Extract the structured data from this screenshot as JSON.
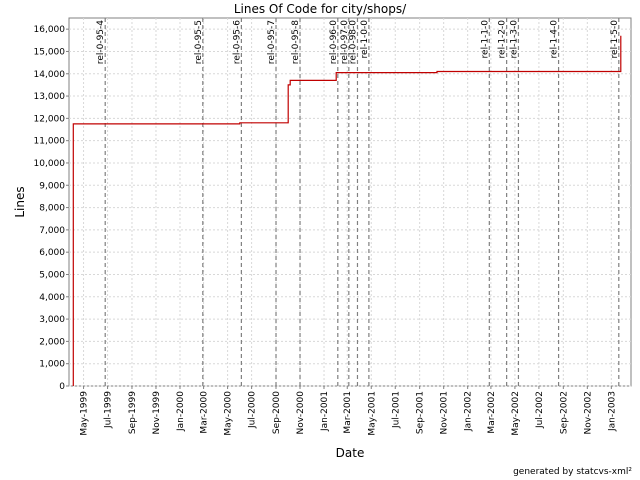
{
  "chart_data": {
    "type": "line",
    "title": "Lines Of Code for city/shops/",
    "xlabel": "Date",
    "ylabel": "Lines",
    "ylim": [
      0,
      16500
    ],
    "y_ticks": [
      0,
      1000,
      2000,
      3000,
      4000,
      5000,
      6000,
      7000,
      8000,
      9000,
      10000,
      11000,
      12000,
      13000,
      14000,
      15000,
      16000
    ],
    "x_ticks": [
      "May-1999",
      "Jul-1999",
      "Sep-1999",
      "Nov-1999",
      "Jan-2000",
      "Mar-2000",
      "May-2000",
      "Jul-2000",
      "Sep-2000",
      "Nov-2000",
      "Jan-2001",
      "Mar-2001",
      "May-2001",
      "Jul-2001",
      "Sep-2001",
      "Nov-2001",
      "Jan-2002",
      "Mar-2002",
      "May-2002",
      "Jul-2002",
      "Sep-2002",
      "Nov-2002",
      "Jan-2003"
    ],
    "step": true,
    "grid": true,
    "series": [
      {
        "color": "#c00000",
        "points": [
          [
            "1999-04-05",
            0
          ],
          [
            "1999-04-05",
            11750
          ],
          [
            "2000-06-01",
            11750
          ],
          [
            "2000-06-01",
            11800
          ],
          [
            "2000-10-02",
            11800
          ],
          [
            "2000-10-02",
            13500
          ],
          [
            "2000-10-07",
            13500
          ],
          [
            "2000-10-07",
            13700
          ],
          [
            "2001-02-01",
            13700
          ],
          [
            "2001-02-01",
            14050
          ],
          [
            "2001-10-15",
            14050
          ],
          [
            "2001-10-15",
            14100
          ],
          [
            "2003-01-25",
            14100
          ],
          [
            "2003-01-25",
            15700
          ]
        ]
      }
    ],
    "markers": {
      "color": "#808080",
      "items": [
        {
          "label": "rel-0-95-4",
          "date": "1999-06-25"
        },
        {
          "label": "rel-0-95-5",
          "date": "2000-02-28"
        },
        {
          "label": "rel-0-95-6",
          "date": "2000-06-05"
        },
        {
          "label": "rel-0-95-7",
          "date": "2000-09-01"
        },
        {
          "label": "rel-0-95-8",
          "date": "2000-11-01"
        },
        {
          "label": "rel-0-96-0",
          "date": "2001-02-05"
        },
        {
          "label": "rel-0-97-0",
          "date": "2001-03-05"
        },
        {
          "label": "rel-0-98-0",
          "date": "2001-03-27"
        },
        {
          "label": "rel-1-0-0",
          "date": "2001-04-25"
        },
        {
          "label": "rel-1-1-0",
          "date": "2002-02-25"
        },
        {
          "label": "rel-1-2-0",
          "date": "2002-04-10"
        },
        {
          "label": "rel-1-3-0",
          "date": "2002-05-10"
        },
        {
          "label": "rel-1-4-0",
          "date": "2002-08-20"
        },
        {
          "label": "rel-1-5-0",
          "date": "2003-01-20"
        }
      ]
    }
  },
  "footer": "generated by statcvs-xml²"
}
